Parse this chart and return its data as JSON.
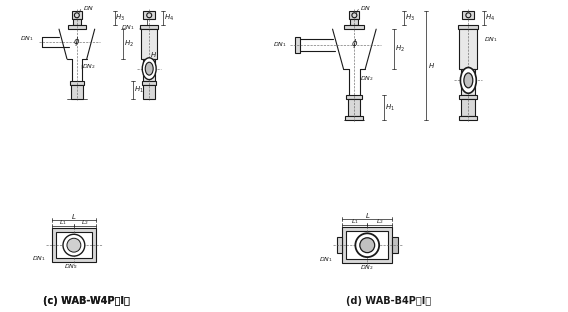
{
  "bg_color": "#ffffff",
  "line_color": "#1a1a1a",
  "label_color": "#1a1a1a",
  "title_left": "(c) WAB-W4P（Ⅰ）",
  "title_right": "(d) WAB-B4P（Ⅰ）",
  "figsize": [
    5.68,
    3.12
  ],
  "dpi": 100
}
